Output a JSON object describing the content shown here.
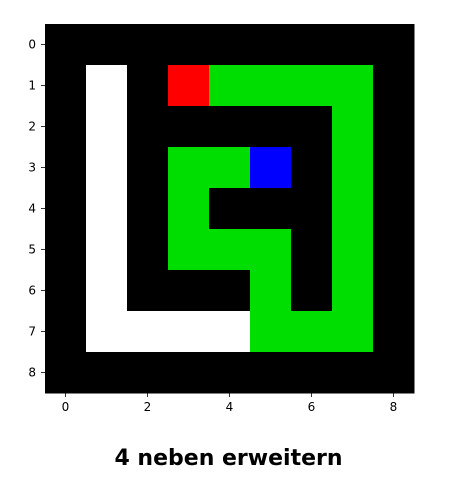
{
  "colors": {
    "wall": "#000000",
    "path": "#00dd00",
    "visited": "#ffffff",
    "start": "#ff0000",
    "agent": "#0000ff"
  },
  "grid": {
    "rows": 9,
    "cols": 9,
    "cells": [
      [
        "wall",
        "wall",
        "wall",
        "wall",
        "wall",
        "wall",
        "wall",
        "wall",
        "wall"
      ],
      [
        "wall",
        "visited",
        "wall",
        "start",
        "path",
        "path",
        "path",
        "path",
        "wall"
      ],
      [
        "wall",
        "visited",
        "wall",
        "wall",
        "wall",
        "wall",
        "wall",
        "path",
        "wall"
      ],
      [
        "wall",
        "visited",
        "wall",
        "path",
        "path",
        "agent",
        "wall",
        "path",
        "wall"
      ],
      [
        "wall",
        "visited",
        "wall",
        "path",
        "wall",
        "wall",
        "wall",
        "path",
        "wall"
      ],
      [
        "wall",
        "visited",
        "wall",
        "path",
        "path",
        "path",
        "wall",
        "path",
        "wall"
      ],
      [
        "wall",
        "visited",
        "wall",
        "wall",
        "wall",
        "path",
        "wall",
        "path",
        "wall"
      ],
      [
        "wall",
        "visited",
        "visited",
        "visited",
        "visited",
        "path",
        "path",
        "path",
        "wall"
      ],
      [
        "wall",
        "wall",
        "wall",
        "wall",
        "wall",
        "wall",
        "wall",
        "wall",
        "wall"
      ]
    ]
  },
  "axes": {
    "x_ticks": [
      "0",
      "2",
      "4",
      "6",
      "8"
    ],
    "x_tick_values": [
      0,
      2,
      4,
      6,
      8
    ],
    "y_ticks": [
      "0",
      "1",
      "2",
      "3",
      "4",
      "5",
      "6",
      "7",
      "8"
    ],
    "y_tick_values": [
      0,
      1,
      2,
      3,
      4,
      5,
      6,
      7,
      8
    ]
  },
  "caption": "4 neben erweitern"
}
